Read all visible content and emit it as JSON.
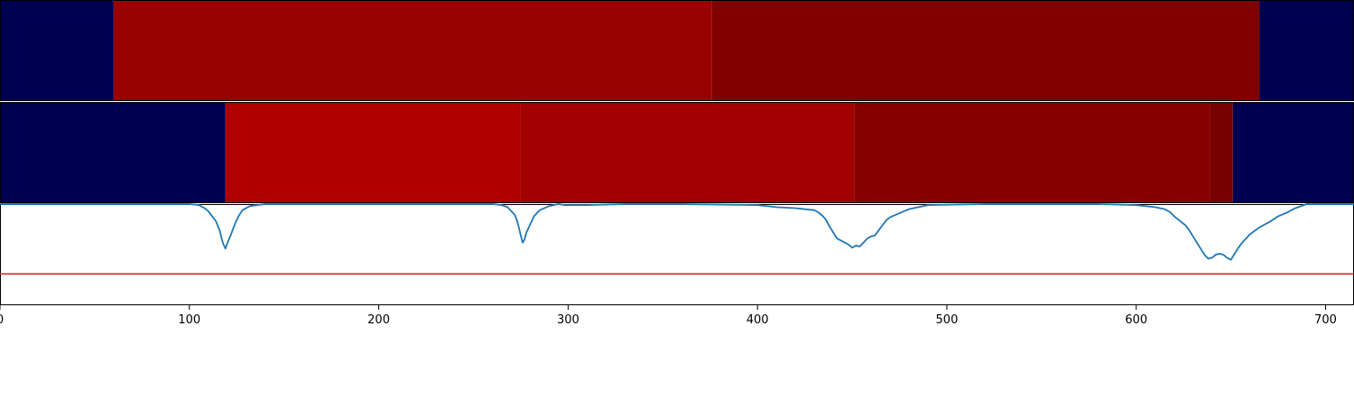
{
  "chart_data": {
    "type": "heatmap",
    "title": "",
    "xlabel": "",
    "ylabel": "",
    "xlim": [
      0,
      715
    ],
    "x_ticks": [
      "0",
      "100",
      "200",
      "300",
      "400",
      "500",
      "600",
      "700"
    ],
    "x_tick_values": [
      0,
      100,
      200,
      300,
      400,
      500,
      600,
      700
    ],
    "colors": {
      "background_segment": "#000050",
      "line": "#1f77b4",
      "threshold": "#d62728",
      "axis": "#000000"
    },
    "heatmap_rows": [
      {
        "segments": [
          {
            "start": 0,
            "end": 60,
            "color": "#000050"
          },
          {
            "start": 60,
            "end": 376,
            "color": "#990000"
          },
          {
            "start": 376,
            "end": 665,
            "color": "#800000"
          },
          {
            "start": 665,
            "end": 715,
            "color": "#000050"
          }
        ]
      },
      {
        "segments": [
          {
            "start": 0,
            "end": 119,
            "color": "#000050"
          },
          {
            "start": 119,
            "end": 275,
            "color": "#b00000"
          },
          {
            "start": 275,
            "end": 451,
            "color": "#a00000"
          },
          {
            "start": 451,
            "end": 639,
            "color": "#8a0000"
          },
          {
            "start": 639,
            "end": 651,
            "color": "#780000"
          },
          {
            "start": 651,
            "end": 715,
            "color": "#000050"
          }
        ]
      }
    ],
    "line_plot": {
      "ylim": [
        0,
        1
      ],
      "threshold": 0.31,
      "x": [
        0,
        100,
        105,
        108,
        110,
        112,
        114,
        116,
        117,
        118,
        119,
        120,
        122,
        124,
        126,
        128,
        132,
        140,
        200,
        260,
        265,
        268,
        270,
        272,
        273,
        274,
        275,
        276,
        277,
        278,
        280,
        282,
        285,
        290,
        295,
        298,
        300,
        310,
        330,
        360,
        400,
        410,
        420,
        425,
        430,
        432,
        434,
        436,
        438,
        440,
        442,
        444,
        446,
        448,
        450,
        452,
        454,
        456,
        458,
        460,
        462,
        464,
        466,
        468,
        470,
        475,
        480,
        490,
        520,
        580,
        600,
        610,
        615,
        618,
        620,
        622,
        624,
        626,
        628,
        630,
        632,
        634,
        636,
        638,
        640,
        642,
        644,
        646,
        648,
        650,
        652,
        654,
        656,
        660,
        665,
        670,
        675,
        680,
        682,
        684,
        690,
        715
      ],
      "y": [
        1.0,
        1.0,
        0.99,
        0.96,
        0.93,
        0.88,
        0.83,
        0.74,
        0.66,
        0.6,
        0.56,
        0.61,
        0.7,
        0.8,
        0.88,
        0.94,
        0.98,
        1.0,
        1.0,
        1.0,
        0.99,
        0.97,
        0.93,
        0.89,
        0.84,
        0.77,
        0.69,
        0.62,
        0.65,
        0.72,
        0.8,
        0.88,
        0.94,
        0.98,
        1.0,
        0.99,
        0.99,
        0.99,
        1.0,
        1.0,
        0.99,
        0.97,
        0.96,
        0.95,
        0.94,
        0.92,
        0.89,
        0.85,
        0.78,
        0.72,
        0.66,
        0.64,
        0.62,
        0.6,
        0.57,
        0.59,
        0.58,
        0.62,
        0.66,
        0.68,
        0.69,
        0.74,
        0.79,
        0.84,
        0.87,
        0.91,
        0.95,
        0.99,
        1.0,
        1.0,
        0.99,
        0.97,
        0.95,
        0.92,
        0.88,
        0.85,
        0.82,
        0.79,
        0.74,
        0.68,
        0.62,
        0.56,
        0.5,
        0.46,
        0.47,
        0.5,
        0.51,
        0.5,
        0.47,
        0.45,
        0.51,
        0.57,
        0.62,
        0.7,
        0.77,
        0.82,
        0.88,
        0.92,
        0.94,
        0.96,
        1.0,
        1.0
      ]
    }
  }
}
